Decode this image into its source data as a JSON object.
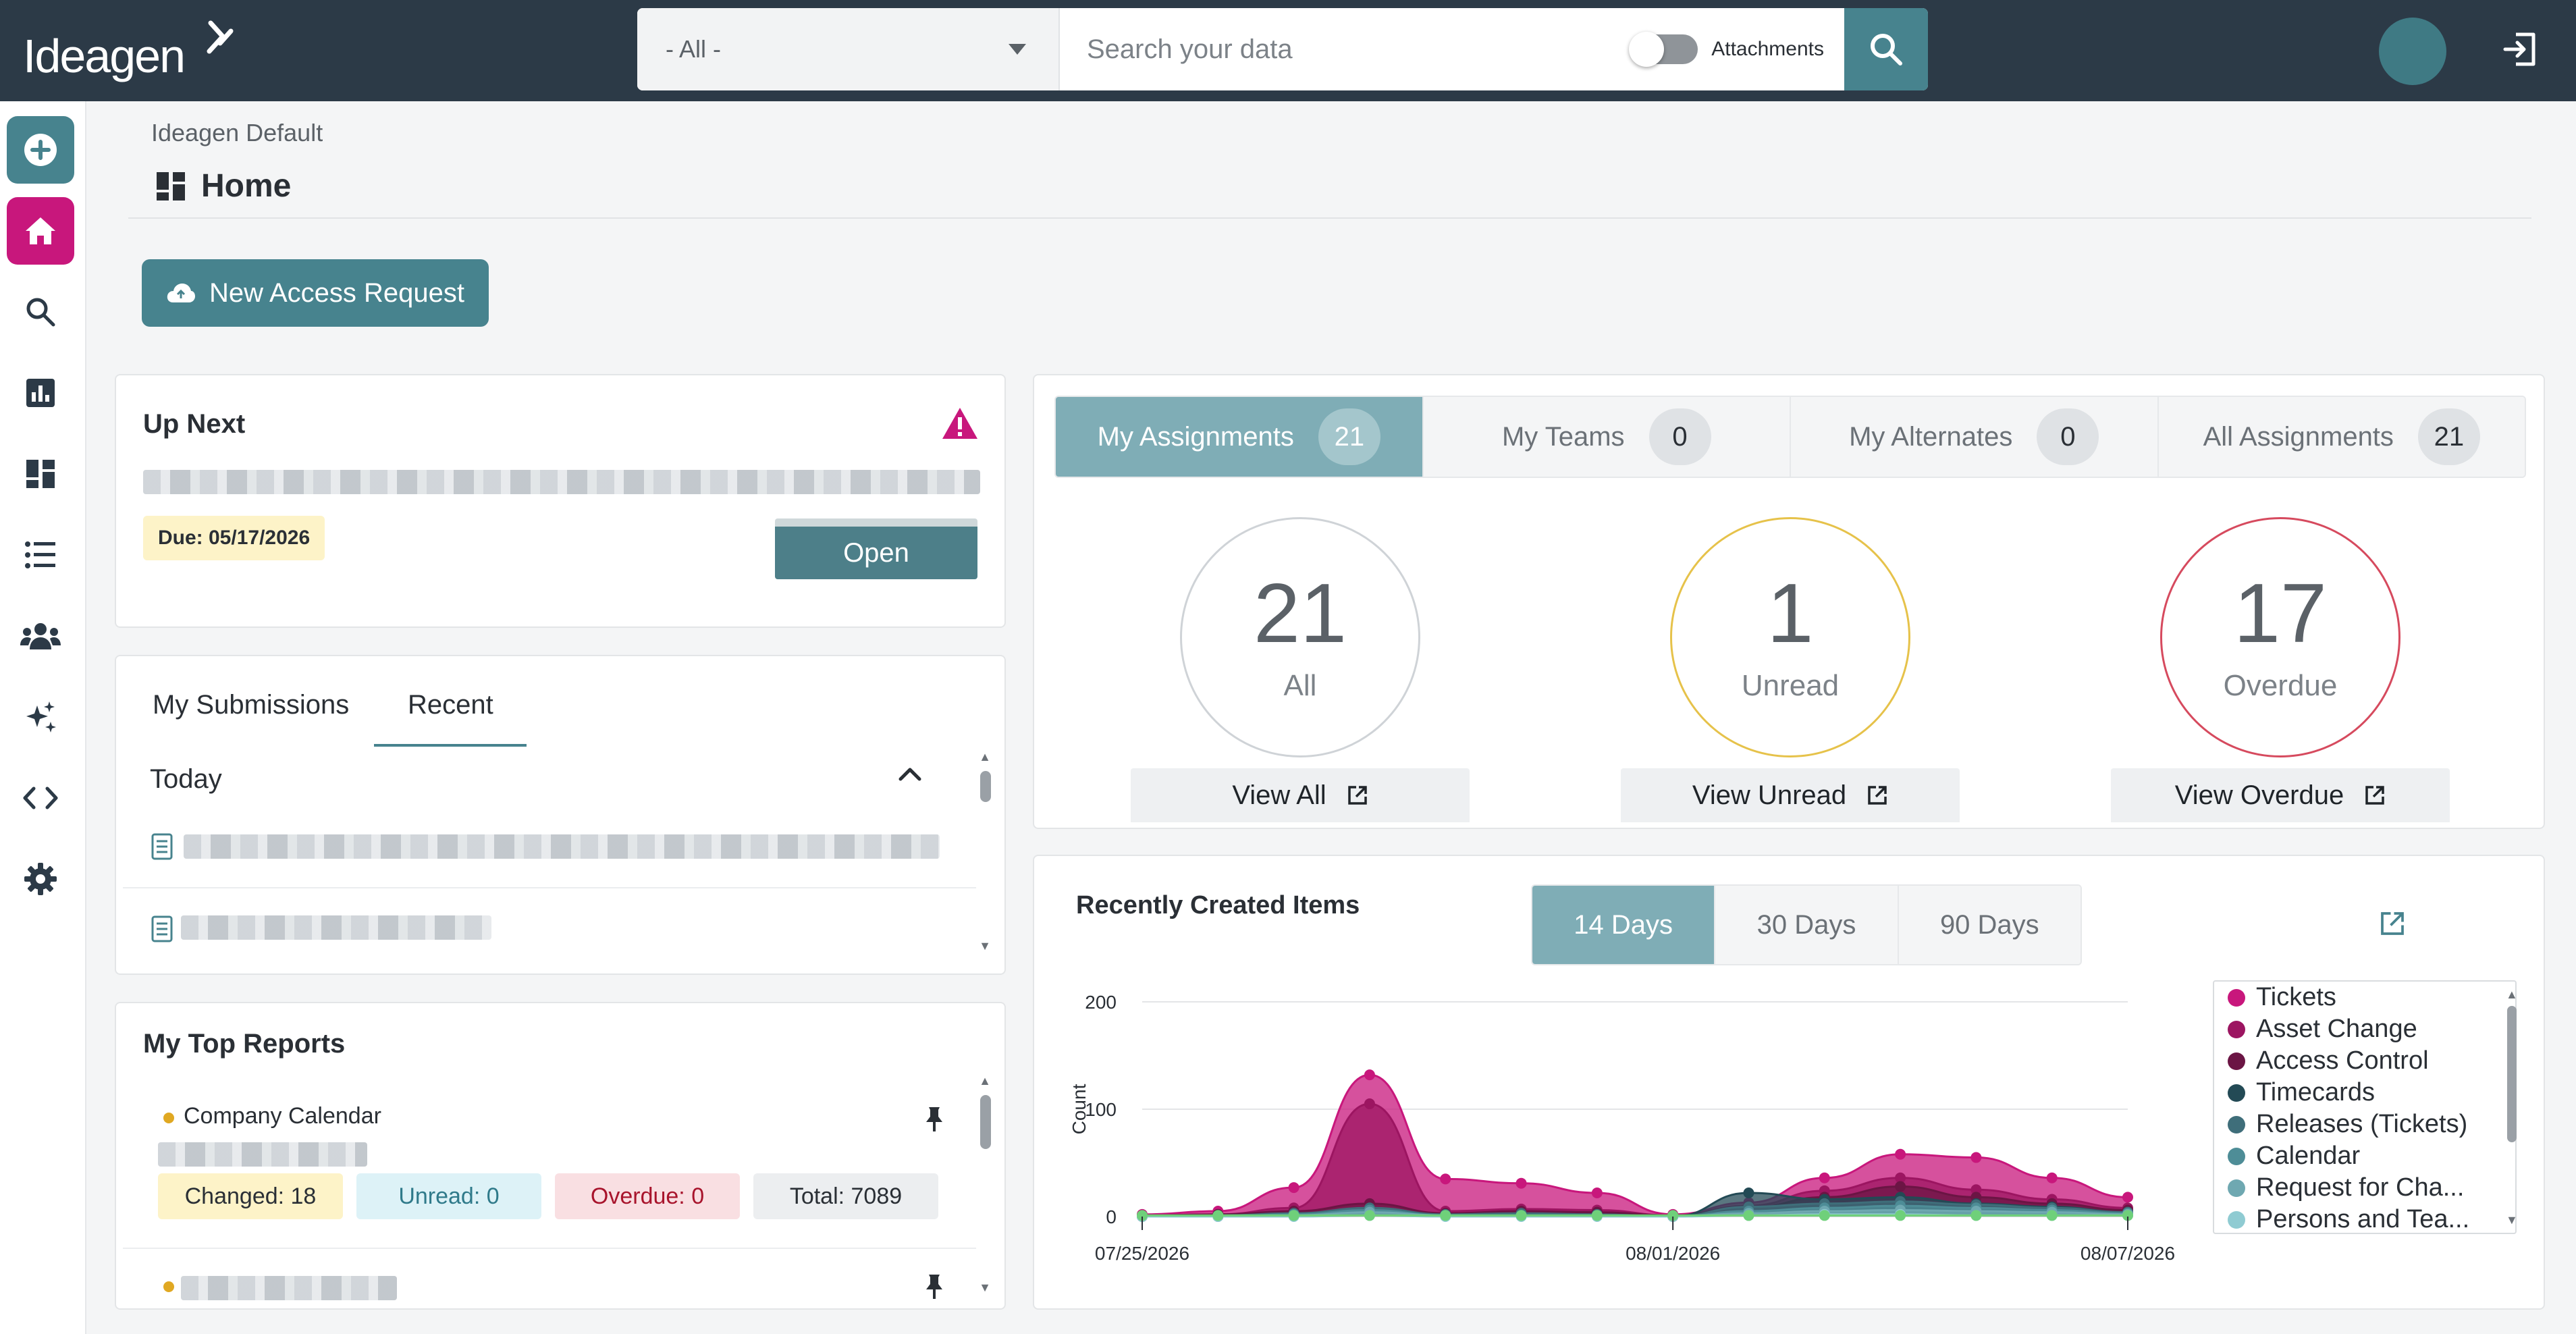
{
  "app": {
    "logo": "Ideagen",
    "scope": "- All -",
    "search_placeholder": "Search your data",
    "attachments_label": "Attachments"
  },
  "sidebar": {
    "icons": [
      "add-circle-icon",
      "home-icon",
      "search-icon",
      "bar-chart-icon",
      "dashboard-icon",
      "list-icon",
      "people-icon",
      "sparkle-icon",
      "code-icon",
      "gear-icon"
    ],
    "active": "home-icon"
  },
  "page": {
    "breadcrumb": "Ideagen Default",
    "title": "Home",
    "new_access_label": "New Access Request"
  },
  "up_next": {
    "title": "Up Next",
    "due": "Due: 05/17/2026",
    "open_label": "Open"
  },
  "submissions": {
    "tabs": [
      "My Submissions",
      "Recent"
    ],
    "active_tab": "Recent",
    "group": "Today"
  },
  "reports": {
    "title": "My Top Reports",
    "first_report": "Company Calendar",
    "stats": {
      "changed": "Changed: 18",
      "unread": "Unread: 0",
      "overdue": "Overdue: 0",
      "total": "Total: 7089"
    }
  },
  "assignments": {
    "tabs": [
      {
        "label": "My Assignments",
        "count": "21"
      },
      {
        "label": "My Teams",
        "count": "0"
      },
      {
        "label": "My Alternates",
        "count": "0"
      },
      {
        "label": "All Assignments",
        "count": "21"
      }
    ],
    "active_tab": "My Assignments",
    "rings": [
      {
        "value": "21",
        "label": "All",
        "view": "View All",
        "color": "#cfd3d7"
      },
      {
        "value": "1",
        "label": "Unread",
        "view": "View Unread",
        "color": "#e6c24a"
      },
      {
        "value": "17",
        "label": "Overdue",
        "view": "View Overdue",
        "color": "#d64a5e"
      }
    ]
  },
  "recently_created": {
    "title": "Recently Created Items",
    "ranges": [
      "14 Days",
      "30 Days",
      "90 Days"
    ],
    "active_range": "14 Days"
  },
  "chart_data": {
    "type": "area",
    "title": "Recently Created Items",
    "ylabel": "Count",
    "xlabel": "",
    "ylim": [
      0,
      200
    ],
    "yticks": [
      "0",
      "100",
      "200"
    ],
    "x": [
      "07/25/2026",
      "07/26/2026",
      "07/27/2026",
      "07/28/2026",
      "07/29/2026",
      "07/30/2026",
      "07/31/2026",
      "08/01/2026",
      "08/02/2026",
      "08/03/2026",
      "08/04/2026",
      "08/05/2026",
      "08/06/2026",
      "08/07/2026"
    ],
    "xtick_labels": [
      "07/25/2026",
      "08/01/2026",
      "08/07/2026"
    ],
    "legend_position": "right",
    "series": [
      {
        "name": "Tickets",
        "color": "#c8177c",
        "values": [
          2,
          5,
          27,
          132,
          35,
          31,
          22,
          2,
          13,
          36,
          58,
          55,
          36,
          18
        ]
      },
      {
        "name": "Asset Change",
        "color": "#9c1561",
        "values": [
          1,
          2,
          8,
          105,
          5,
          7,
          6,
          1,
          10,
          24,
          36,
          25,
          16,
          8
        ]
      },
      {
        "name": "Access Control",
        "color": "#6b1544",
        "values": [
          1,
          2,
          5,
          12,
          3,
          5,
          4,
          1,
          8,
          18,
          28,
          18,
          12,
          6
        ]
      },
      {
        "name": "Timecards",
        "color": "#234a55",
        "values": [
          0,
          1,
          2,
          4,
          1,
          2,
          2,
          0,
          22,
          16,
          18,
          12,
          9,
          4
        ]
      },
      {
        "name": "Releases (Tickets)",
        "color": "#3f6e7a",
        "values": [
          0,
          1,
          3,
          8,
          2,
          3,
          2,
          0,
          9,
          12,
          14,
          11,
          8,
          4
        ]
      },
      {
        "name": "Calendar",
        "color": "#4e8d97",
        "values": [
          0,
          0,
          2,
          6,
          1,
          1,
          1,
          0,
          5,
          8,
          10,
          8,
          6,
          3
        ]
      },
      {
        "name": "Request for Cha...",
        "color": "#6fa8b1",
        "values": [
          0,
          0,
          1,
          4,
          1,
          1,
          1,
          0,
          3,
          5,
          6,
          5,
          4,
          2
        ]
      },
      {
        "name": "Persons and Tea...",
        "color": "#8fcbd2",
        "values": [
          0,
          0,
          0,
          1,
          0,
          0,
          0,
          0,
          1,
          2,
          2,
          1,
          1,
          1
        ]
      },
      {
        "name": "",
        "color": "#6fd07a",
        "values": [
          1,
          1,
          1,
          1,
          1,
          1,
          1,
          1,
          1,
          1,
          1,
          1,
          1,
          1
        ]
      }
    ]
  }
}
